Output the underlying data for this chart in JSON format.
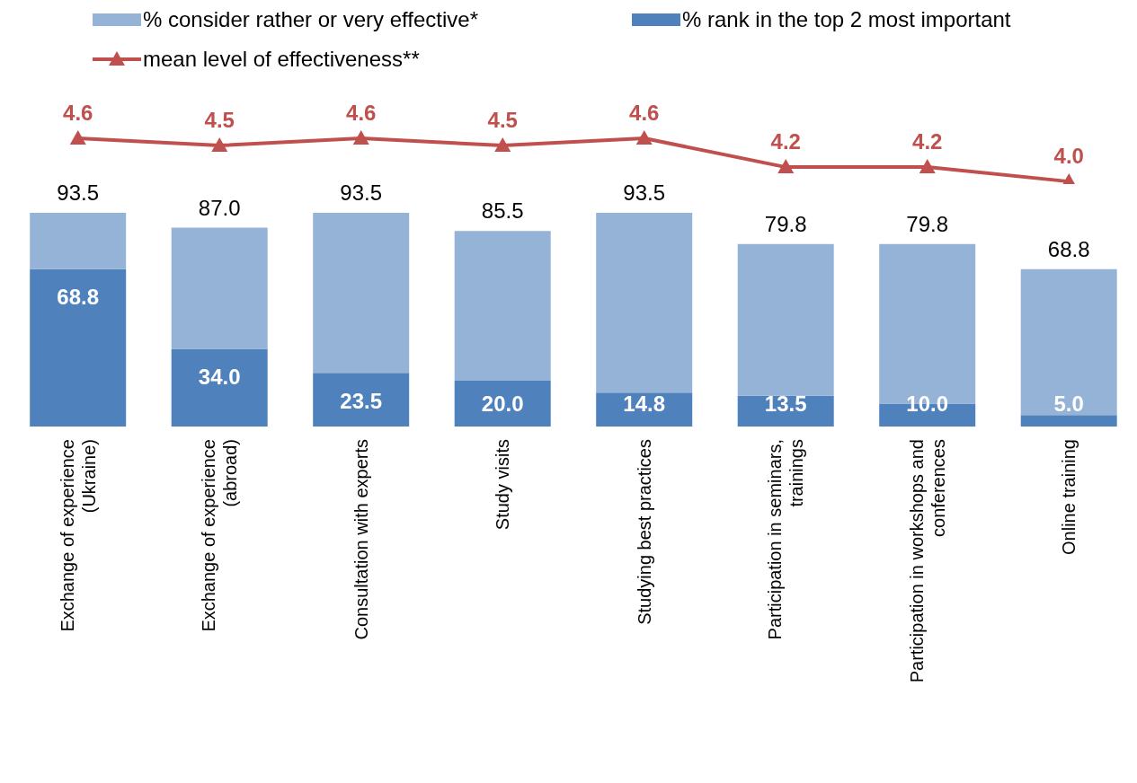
{
  "chart_data": [
    {
      "type": "line",
      "tick_labels": false,
      "legend": "top",
      "marker": "triangle",
      "grid": false,
      "categories": [
        null,
        null,
        null,
        null,
        null,
        null,
        null,
        null
      ],
      "series": [
        {
          "name": "mean level of effectiveness**",
          "color": "#c0504d",
          "values": [
            4.6,
            4.5,
            4.6,
            4.5,
            4.6,
            4.2,
            4.2,
            4.0
          ],
          "value_labels": [
            "4.6",
            "4.5",
            "4.6",
            "4.5",
            "4.6",
            "4.2",
            "4.2",
            "4.0"
          ]
        }
      ]
    },
    {
      "type": "bar",
      "stacked": true,
      "tick_labels": "x",
      "legend": "top",
      "grid": false,
      "categories": [
        "Exchange of experience (Ukraine)",
        "Exchange of experience (abroad)",
        "Consultation with experts",
        "Study visits",
        "Studying best practices",
        "Participation in seminars, trainings",
        "Participation in workshops and conferences",
        "Online training"
      ],
      "series": [
        {
          "name": "% rank in the top 2 most important",
          "type": "bar",
          "color": "#4f81bd",
          "values": [
            68.8,
            34.0,
            23.5,
            20.0,
            14.8,
            13.5,
            10.0,
            5.0
          ],
          "value_labels": [
            "68.8",
            "34.0",
            "23.5",
            "20.0",
            "14.8",
            "13.5",
            "10.0",
            "5.0"
          ]
        },
        {
          "name": "% consider rather or very effective*",
          "type": "bar",
          "color": "#95b3d7",
          "values": [
            24.7,
            53.0,
            70.0,
            65.5,
            78.7,
            66.3,
            69.8,
            63.8
          ]
        }
      ],
      "totals": [
        "93.5",
        "87.0",
        "93.5",
        "85.5",
        "93.5",
        "79.8",
        "79.8",
        "68.8"
      ]
    }
  ]
}
